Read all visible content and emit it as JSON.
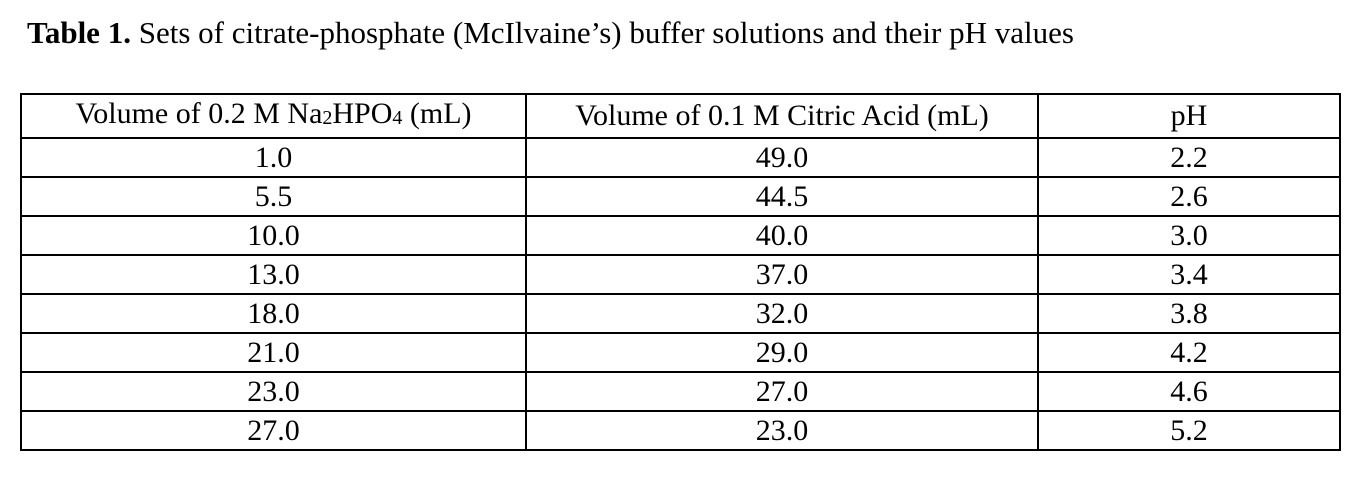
{
  "caption": {
    "label": "Table 1.",
    "text": "Sets of citrate-phosphate (McIlvaine’s) buffer solutions and their pH values"
  },
  "table": {
    "headers": {
      "col1": {
        "prefix": "Volume of 0.2 M Na",
        "sub1": "2",
        "mid": "HPO",
        "sub2": "4",
        "suffix": " (mL)"
      },
      "col2": "Volume of 0.1 M Citric Acid (mL)",
      "col3": "pH"
    },
    "rows": [
      [
        "1.0",
        "49.0",
        "2.2"
      ],
      [
        "5.5",
        "44.5",
        "2.6"
      ],
      [
        "10.0",
        "40.0",
        "3.0"
      ],
      [
        "13.0",
        "37.0",
        "3.4"
      ],
      [
        "18.0",
        "32.0",
        "3.8"
      ],
      [
        "21.0",
        "29.0",
        "4.2"
      ],
      [
        "23.0",
        "27.0",
        "4.6"
      ],
      [
        "27.0",
        "23.0",
        "5.2"
      ]
    ]
  }
}
